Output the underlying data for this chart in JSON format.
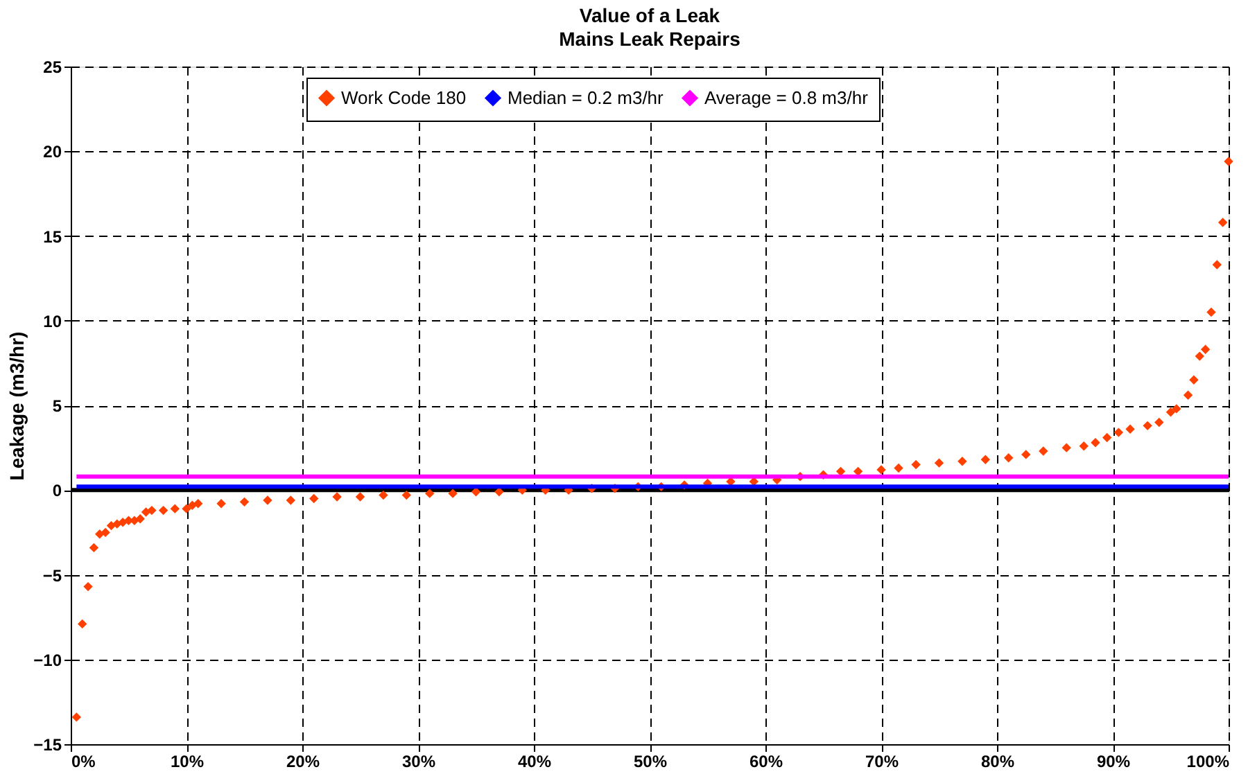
{
  "chart_data": {
    "type": "scatter",
    "title": "Value of a Leak",
    "subtitle": "Mains Leak Repairs",
    "ylabel": "Leakage (m3/hr)",
    "xlim": [
      0,
      100
    ],
    "xticks": [
      {
        "value": 0,
        "label": "0%"
      },
      {
        "value": 10,
        "label": "10%"
      },
      {
        "value": 20,
        "label": "20%"
      },
      {
        "value": 30,
        "label": "30%"
      },
      {
        "value": 40,
        "label": "40%"
      },
      {
        "value": 50,
        "label": "50%"
      },
      {
        "value": 60,
        "label": "60%"
      },
      {
        "value": 70,
        "label": "70%"
      },
      {
        "value": 80,
        "label": "80%"
      },
      {
        "value": 90,
        "label": "90%"
      },
      {
        "value": 100,
        "label": "100%"
      }
    ],
    "ylim": [
      -15,
      25
    ],
    "yticks": [
      -15,
      -10,
      -5,
      0,
      5,
      10,
      15,
      20,
      25
    ],
    "grid": true,
    "legend": "top",
    "series": [
      {
        "name": "Work Code 180",
        "marker": "diamond",
        "color": "#ff4000",
        "x": [
          0.5,
          1,
          1.5,
          2,
          2.5,
          3,
          3.5,
          4,
          4.5,
          5,
          5.5,
          6,
          6.5,
          7,
          8,
          9,
          10,
          10.5,
          11,
          13,
          15,
          17,
          19,
          21,
          23,
          25,
          27,
          29,
          31,
          33,
          35,
          37,
          39,
          41,
          43,
          45,
          47,
          49,
          51,
          53,
          55,
          57,
          59,
          61,
          63,
          65,
          66.5,
          68,
          70,
          71.5,
          73,
          75,
          77,
          79,
          81,
          82.5,
          84,
          86,
          87.5,
          88.5,
          89.5,
          90.5,
          91.5,
          93,
          94,
          95,
          95.5,
          96.5,
          97,
          97.5,
          98,
          98.5,
          99,
          99.5,
          100
        ],
        "values": [
          -13.4,
          -7.9,
          -5.7,
          -3.4,
          -2.6,
          -2.5,
          -2.1,
          -2.0,
          -1.9,
          -1.8,
          -1.8,
          -1.7,
          -1.3,
          -1.2,
          -1.2,
          -1.1,
          -1.1,
          -0.9,
          -0.8,
          -0.8,
          -0.7,
          -0.6,
          -0.6,
          -0.5,
          -0.4,
          -0.4,
          -0.3,
          -0.3,
          -0.2,
          -0.2,
          -0.1,
          -0.1,
          0,
          0,
          0,
          0.1,
          0.1,
          0.2,
          0.2,
          0.3,
          0.4,
          0.5,
          0.5,
          0.6,
          0.8,
          0.9,
          1.1,
          1.1,
          1.2,
          1.3,
          1.5,
          1.6,
          1.7,
          1.8,
          1.9,
          2.1,
          2.3,
          2.5,
          2.6,
          2.8,
          3.1,
          3.4,
          3.6,
          3.8,
          4.0,
          4.6,
          4.8,
          5.6,
          6.5,
          7.9,
          8.3,
          10.5,
          13.3,
          15.8,
          19.4
        ]
      },
      {
        "name": "Median = 0.2 m3/hr",
        "type": "line",
        "marker": "none",
        "color": "#0000ff",
        "x": [
          0.5,
          100
        ],
        "values": [
          0.2,
          0.2
        ]
      },
      {
        "name": "Average = 0.8 m3/hr",
        "type": "line",
        "marker": "none",
        "color": "#ff00ff",
        "x": [
          0.5,
          100
        ],
        "values": [
          0.8,
          0.8
        ]
      }
    ],
    "ref_lines": [
      {
        "axis": "y",
        "value": 0,
        "color": "#000000"
      }
    ]
  }
}
